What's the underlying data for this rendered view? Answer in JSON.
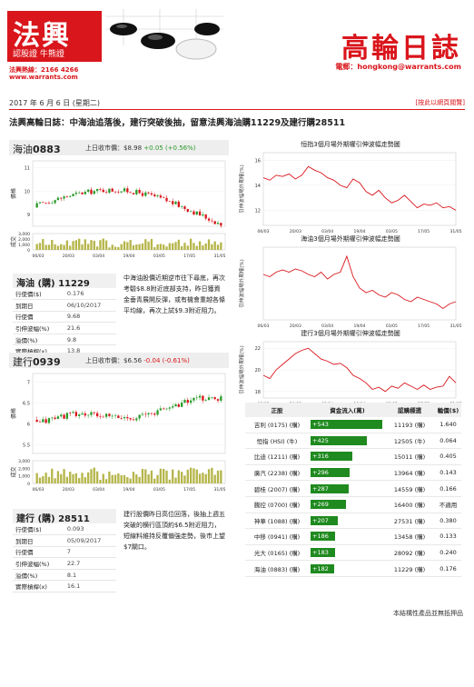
{
  "header": {
    "logo_main": "法興",
    "logo_sub": "認股證 牛熊證",
    "hotline": "法興熱線：2166 4266",
    "website": "www.warrants.com",
    "title": "高輪日誌",
    "email": "電郵：hongkong@warrants.com",
    "date": "2017 年 6 月 6 日 (星期二)",
    "unsubscribe": "[按此以網頁閱覽]"
  },
  "headline": "法興高輪日誌：中海油追落後，建行突破後抽，留意法興海油購11229及建行購28511",
  "colors": {
    "brand_red": "#d9161c",
    "up_green": "#2a9a2a",
    "flow_green": "#1f8a1f"
  },
  "stocks": [
    {
      "name": "海油",
      "code": "0883",
      "quote_label": "上日收市價：",
      "price": "$8.98",
      "change": "+0.05 (+0.56%)",
      "y_ticks": [
        "11",
        "10",
        "9"
      ],
      "vol_ticks": [
        "3,000",
        "2,000",
        "1,000",
        "0"
      ],
      "x_ticks": [
        "06/03",
        "20/03",
        "03/04",
        "19/04",
        "03/05",
        "17/05",
        "31/05"
      ],
      "price_axis_label": "價格",
      "vol_axis_label": "成交",
      "warrant": {
        "title": "海油 (購) 11229",
        "rows": [
          {
            "label": "行使價($)",
            "value": "0.176"
          },
          {
            "label": "到期日",
            "value": "06/10/2017"
          },
          {
            "label": "行使價",
            "value": "9.68"
          },
          {
            "label": "引伸波幅(%)",
            "value": "21.6"
          },
          {
            "label": "溢價(%)",
            "value": "9.8"
          },
          {
            "label": "實際槓桿(x)",
            "value": "13.8"
          }
        ]
      },
      "comment": "中海油股價近期逆市往下尋底，再次考驗$8.8附近底部支持，昨日獲資金垂青展開反彈，或有機會重越各條平均線，再次上試$9.3附近阻力。"
    },
    {
      "name": "建行",
      "code": "0939",
      "quote_label": "上日收市價：",
      "price": "$6.56",
      "change": "-0.04 (-0.61%)",
      "y_ticks": [
        "7",
        "6.5",
        "6",
        "5.5"
      ],
      "vol_ticks": [
        "3,000",
        "2,000",
        "1,000",
        "0"
      ],
      "x_ticks": [
        "06/03",
        "20/03",
        "03/04",
        "19/04",
        "03/05",
        "17/05",
        "31/05"
      ],
      "price_axis_label": "價格",
      "vol_axis_label": "成交",
      "warrant": {
        "title": "建行 (購) 28511",
        "rows": [
          {
            "label": "行使價($)",
            "value": "0.093"
          },
          {
            "label": "到期日",
            "value": "05/09/2017"
          },
          {
            "label": "行使價",
            "value": "7"
          },
          {
            "label": "引伸波幅(%)",
            "value": "22.7"
          },
          {
            "label": "溢價(%)",
            "value": "8.1"
          },
          {
            "label": "實際槓桿(x)",
            "value": "16.1"
          }
        ]
      },
      "comment": "建行股價昨日高位回落，後抽上週五突破的横行區頂約$6.5附近阻力，短線料維持反覆偏強走勢，後市上望$7關口。"
    }
  ],
  "chart_data": [
    {
      "type": "line",
      "title": "恒指3個月場外期權引伸波幅走勢圖",
      "ylabel": "引伸波幅場外期權(%)",
      "y_ticks": [
        16,
        14,
        12
      ],
      "ylim": [
        10.8,
        16.6
      ],
      "x_ticks": [
        "06/03",
        "20/03",
        "03/04",
        "19/04",
        "03/05",
        "17/05",
        "31/05"
      ],
      "values": [
        14.6,
        14.4,
        14.8,
        14.7,
        14.9,
        14.5,
        14.8,
        15.5,
        15.2,
        15.0,
        14.6,
        14.4,
        14.0,
        13.8,
        14.5,
        14.2,
        13.5,
        13.2,
        13.6,
        13.0,
        12.6,
        12.8,
        13.2,
        12.7,
        12.2,
        12.5,
        12.4,
        12.6,
        12.2,
        12.3,
        12.0
      ]
    },
    {
      "type": "line",
      "title": "海油3個月場外期權引伸波幅走勢圖",
      "ylabel": "引伸波幅場外期權(%)",
      "y_ticks": [],
      "ylim": [
        16,
        32
      ],
      "x_ticks": [
        "06/03",
        "20/03",
        "03/04",
        "19/04",
        "03/05",
        "17/05",
        "31/05"
      ],
      "values": [
        26,
        25.5,
        26.5,
        27,
        26.5,
        27.2,
        26.8,
        26,
        25.5,
        26.5,
        25,
        26,
        26.5,
        30,
        25.5,
        23,
        22,
        22.5,
        21.5,
        21,
        22,
        21.5,
        20.5,
        20,
        21,
        20.5,
        20,
        19.5,
        18.5,
        19.5,
        20
      ]
    },
    {
      "type": "line",
      "title": "建行3個月場外期權引伸波幅走勢圖",
      "ylabel": "引伸波幅場外期權(%)",
      "y_ticks": [
        22,
        20,
        18
      ],
      "ylim": [
        17.4,
        22.6
      ],
      "x_ticks": [
        "06/03",
        "20/03",
        "03/04",
        "19/04",
        "03/05",
        "17/05",
        "31/05"
      ],
      "values": [
        19.5,
        19.2,
        20,
        20.5,
        21,
        21.5,
        21.8,
        22,
        21.5,
        21,
        20.8,
        20.5,
        20.6,
        20.2,
        19.5,
        19.2,
        18.8,
        18.2,
        18.4,
        18.0,
        18.5,
        18.3,
        18.8,
        18.5,
        18.2,
        18.6,
        18.2,
        18.4,
        18.5,
        19.4,
        18.8
      ]
    }
  ],
  "flow_table": {
    "headers": [
      "正股",
      "資金流入(萬)",
      "認購標選",
      "輪價($)"
    ],
    "max_flow": 543,
    "rows": [
      {
        "stock": "吉利 (0175) (購)",
        "flow": "+543",
        "flow_value": 543,
        "warrant": "11193 (購)",
        "price": "1.640"
      },
      {
        "stock": "恒指 (HSI) (牛)",
        "flow": "+425",
        "flow_value": 425,
        "warrant": "12505 (牛)",
        "price": "0.064"
      },
      {
        "stock": "比迪 (1211) (購)",
        "flow": "+316",
        "flow_value": 316,
        "warrant": "15011 (購)",
        "price": "0.405"
      },
      {
        "stock": "廣汽 (2238) (購)",
        "flow": "+296",
        "flow_value": 296,
        "warrant": "13964 (購)",
        "price": "0.143"
      },
      {
        "stock": "碧桂 (2007) (購)",
        "flow": "+287",
        "flow_value": 287,
        "warrant": "14559 (購)",
        "price": "0.166"
      },
      {
        "stock": "騰控 (0700) (購)",
        "flow": "+269",
        "flow_value": 269,
        "warrant": "16400 (購)",
        "price": "不適用"
      },
      {
        "stock": "神華 (1088) (購)",
        "flow": "+207",
        "flow_value": 207,
        "warrant": "27531 (購)",
        "price": "0.380"
      },
      {
        "stock": "中移 (0941) (購)",
        "flow": "+186",
        "flow_value": 186,
        "warrant": "13458 (購)",
        "price": "0.133"
      },
      {
        "stock": "光大 (0165) (購)",
        "flow": "+183",
        "flow_value": 183,
        "warrant": "28092 (購)",
        "price": "0.240"
      },
      {
        "stock": "海油 (0883) (購)",
        "flow": "+182",
        "flow_value": 182,
        "warrant": "11229 (購)",
        "price": "0.176"
      }
    ]
  },
  "disclaimer": "本結構性產品並無抵押品"
}
